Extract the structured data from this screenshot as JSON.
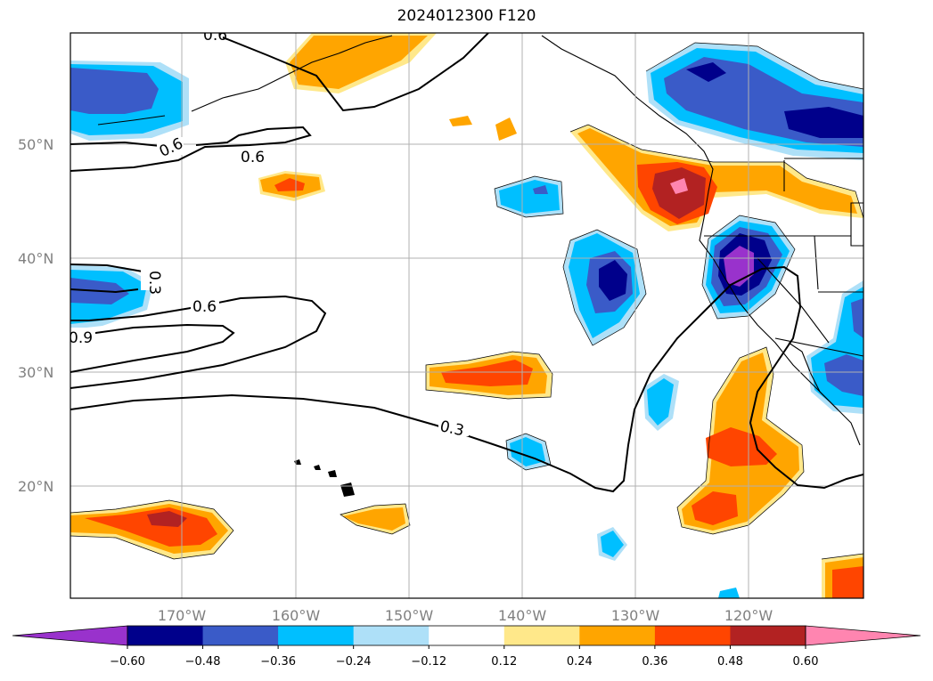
{
  "title": "2024012300 F120",
  "map": {
    "lat_labels": [
      "50°N",
      "40°N",
      "30°N",
      "20°N"
    ],
    "lon_labels": [
      "170°W",
      "160°W",
      "150°W",
      "140°W",
      "130°W",
      "120°W"
    ],
    "contour_labels": [
      "0.6",
      "0.6",
      "0.6",
      "0.3",
      "0.9",
      "0.3",
      "0.6"
    ]
  },
  "colorbar": {
    "ticks": [
      "−0.60",
      "−0.48",
      "−0.36",
      "−0.24",
      "−0.12",
      "0.12",
      "0.24",
      "0.36",
      "0.48",
      "0.60"
    ],
    "colors": [
      "#9932cc",
      "#00008b",
      "#3a5bc8",
      "#00bfff",
      "#aee0f8",
      "#ffffff",
      "#ffe88a",
      "#ffa500",
      "#ff4500",
      "#b22222",
      "#ff85b0"
    ]
  }
}
